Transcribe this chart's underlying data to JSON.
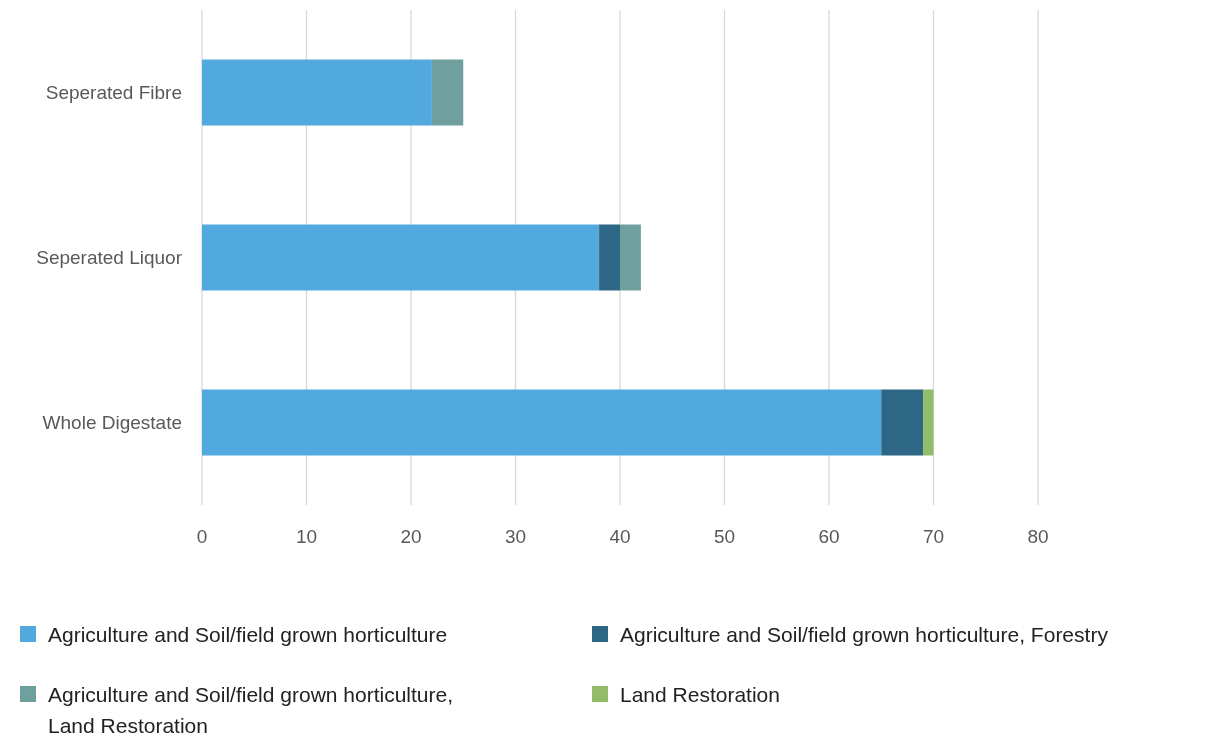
{
  "chart_data": {
    "type": "bar",
    "orientation": "horizontal",
    "stacked": true,
    "categories": [
      "Seperated Fibre",
      "Seperated Liquor",
      "Whole Digestate"
    ],
    "series": [
      {
        "name": "Agriculture and Soil/field grown horticulture",
        "color": "#51a9de",
        "values": [
          22,
          38,
          65
        ]
      },
      {
        "name": "Agriculture and Soil/field grown horticulture, Forestry",
        "color": "#2e6786",
        "values": [
          0,
          2,
          4
        ]
      },
      {
        "name": "Agriculture and Soil/field grown horticulture, Land Restoration",
        "color": "#70a09d",
        "values": [
          3,
          2,
          0
        ]
      },
      {
        "name": "Land Restoration",
        "color": "#92bb6a",
        "values": [
          0,
          0,
          1
        ]
      }
    ],
    "xlim": [
      0,
      80
    ],
    "xticks": [
      0,
      10,
      20,
      30,
      40,
      50,
      60,
      70,
      80
    ],
    "grid": "x",
    "legend": "bottom"
  }
}
